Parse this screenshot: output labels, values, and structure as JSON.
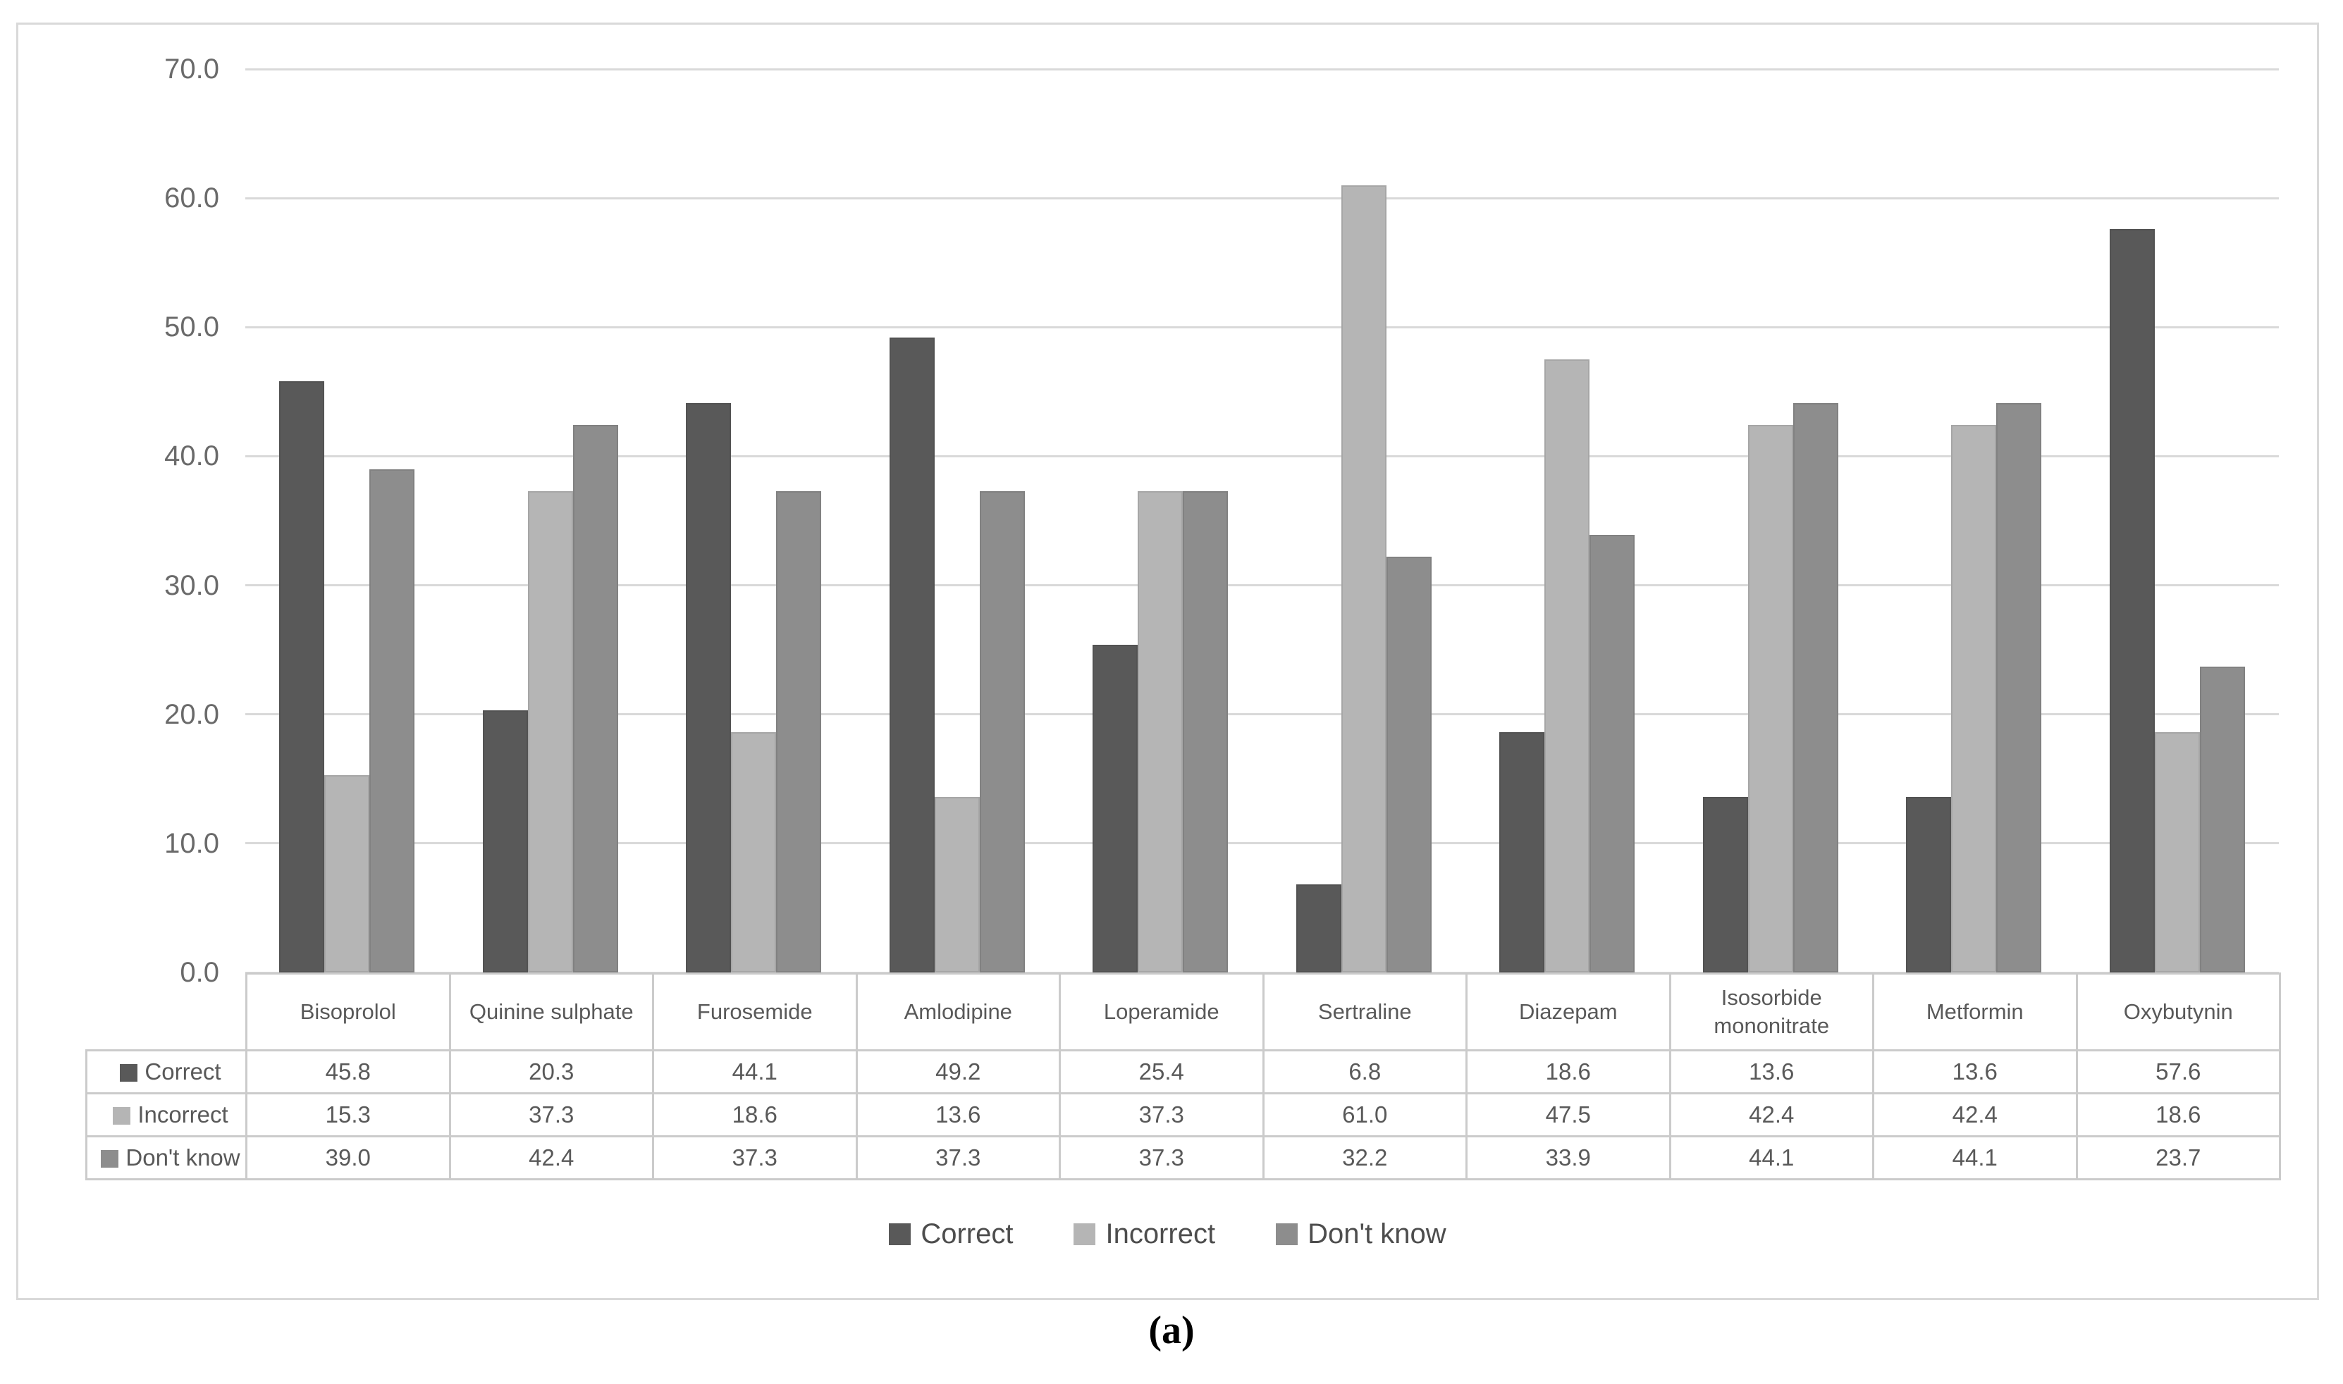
{
  "caption": "(a)",
  "colors": {
    "background": "#ffffff",
    "frame_border": "#d9d9d9",
    "gridline": "#d9d9d9",
    "axis_text": "#6a6a6a",
    "table_border": "#cbcbcb",
    "table_text": "#595959",
    "legend_text": "#4d4d4d"
  },
  "chart_data": {
    "type": "bar",
    "title": "",
    "xlabel": "",
    "ylabel": "",
    "categories": [
      "Bisoprolol",
      "Quinine sulphate",
      "Furosemide",
      "Amlodipine",
      "Loperamide",
      "Sertraline",
      "Diazepam",
      "Isosorbide mononitrate",
      "Metformin",
      "Oxybutynin"
    ],
    "series": [
      {
        "name": "Correct",
        "color": "#595959",
        "values": [
          45.8,
          20.3,
          44.1,
          49.2,
          25.4,
          6.8,
          18.6,
          13.6,
          13.6,
          57.6
        ]
      },
      {
        "name": "Incorrect",
        "color": "#b5b5b5",
        "values": [
          15.3,
          37.3,
          18.6,
          13.6,
          37.3,
          61.0,
          47.5,
          42.4,
          42.4,
          18.6
        ]
      },
      {
        "name": "Don't know",
        "color": "#8d8d8d",
        "values": [
          39.0,
          42.4,
          37.3,
          37.3,
          37.3,
          32.2,
          33.9,
          44.1,
          44.1,
          23.7
        ]
      }
    ],
    "ylim": [
      0,
      70
    ],
    "ytick_step": 10,
    "ytick_labels": [
      "0.0",
      "10.0",
      "20.0",
      "30.0",
      "40.0",
      "50.0",
      "60.0",
      "70.0"
    ],
    "grid": true,
    "legend_position": "bottom",
    "data_table_shown": true,
    "value_decimals": 1
  }
}
